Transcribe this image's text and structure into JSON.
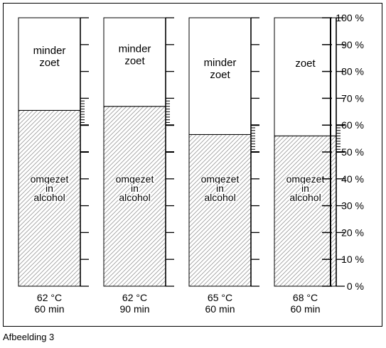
{
  "figure": {
    "caption": "Afbeelding 3"
  },
  "chart_data": {
    "type": "bar",
    "stacked": true,
    "ylim": [
      0,
      100
    ],
    "y_ticks": [
      "0 %",
      "10 %",
      "20 %",
      "30 %",
      "40 %",
      "50 %",
      "60 %",
      "70 %",
      "80 %",
      "90 %",
      "100 %"
    ],
    "categories": [
      {
        "line1": "62 °C",
        "line2": "60 min"
      },
      {
        "line1": "62 °C",
        "line2": "90 min"
      },
      {
        "line1": "65 °C",
        "line2": "60 min"
      },
      {
        "line1": "68 °C",
        "line2": "60 min"
      }
    ],
    "series": [
      {
        "label_lines": [
          "omgezet",
          "in",
          "alcohol"
        ],
        "pattern": "diagonal-hatch",
        "values": [
          65.5,
          67,
          56.5,
          56
        ]
      },
      {
        "label_lines_per_bar": [
          [
            "minder",
            "zoet"
          ],
          [
            "minder",
            "zoet"
          ],
          [
            "minder",
            "zoet"
          ],
          [
            "zoet"
          ]
        ],
        "pattern": "none",
        "values": [
          34.5,
          33,
          43.5,
          44
        ]
      }
    ],
    "colors": {
      "hatch": "#9a9a9a",
      "line": "#000000"
    }
  }
}
